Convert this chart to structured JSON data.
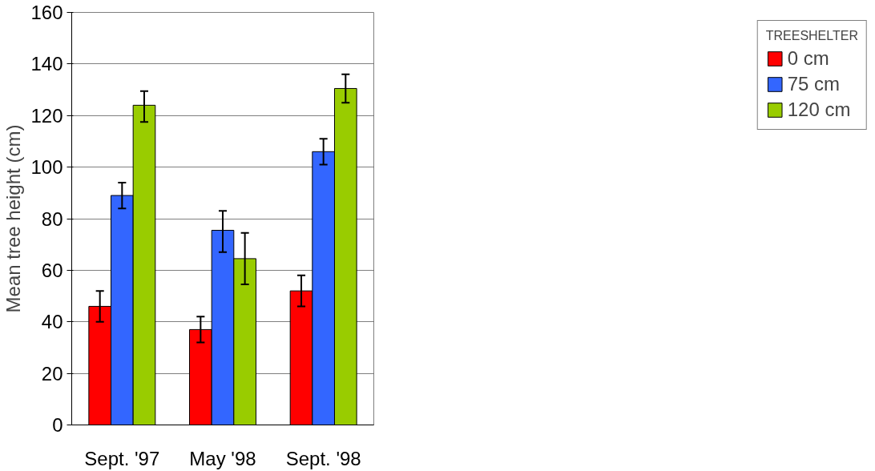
{
  "chart_data": {
    "type": "bar",
    "ylabel": "Mean tree height (cm)",
    "legend_title": "TREESHELTER",
    "categories": [
      "Sept. '97",
      "May '98",
      "Sept. '98"
    ],
    "series": [
      {
        "name": "0 cm",
        "color": "#ff0000",
        "values": [
          46,
          37,
          52
        ],
        "errors": [
          [
            40,
            52
          ],
          [
            32,
            42
          ],
          [
            46,
            58
          ]
        ]
      },
      {
        "name": "75 cm",
        "color": "#3366ff",
        "values": [
          89,
          75.5,
          106
        ],
        "errors": [
          [
            84,
            94
          ],
          [
            67,
            83
          ],
          [
            101,
            111
          ]
        ]
      },
      {
        "name": "120 cm",
        "color": "#99cc00",
        "values": [
          124,
          64.5,
          130.5
        ],
        "errors": [
          [
            117.5,
            129.5
          ],
          [
            54.5,
            74.5
          ],
          [
            125,
            136
          ]
        ]
      }
    ],
    "ylim": [
      0,
      160
    ],
    "yticks": [
      0,
      20,
      40,
      60,
      80,
      100,
      120,
      140,
      160
    ],
    "grid": "y",
    "legend": "right"
  }
}
